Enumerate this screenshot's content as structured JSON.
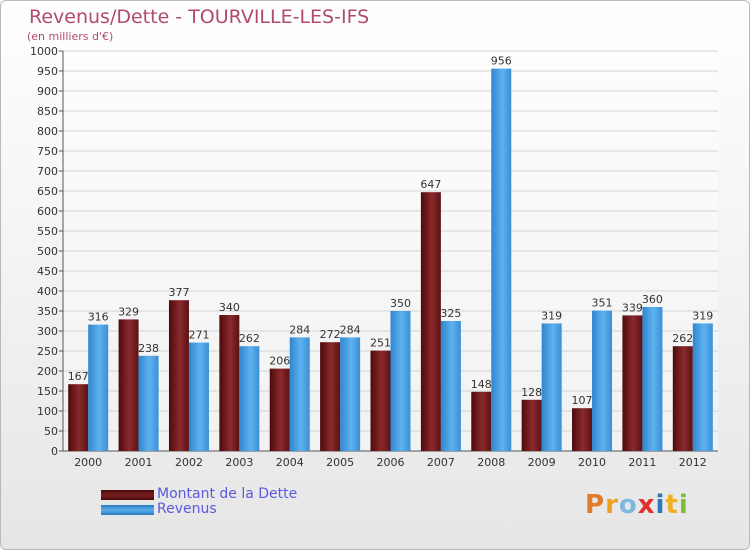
{
  "title": "Revenus/Dette - TOURVILLE-LES-IFS",
  "subtitle": "(en milliers d'€)",
  "logo": {
    "text": "Proxiti",
    "letters": [
      {
        "ch": "P",
        "color": "#e07b2a"
      },
      {
        "ch": "r",
        "color": "#f0a020"
      },
      {
        "ch": "o",
        "color": "#7cb8e0"
      },
      {
        "ch": "x",
        "color": "#e0302a"
      },
      {
        "ch": "i",
        "color": "#2a7ac0"
      },
      {
        "ch": "t",
        "color": "#f0b020"
      },
      {
        "ch": "i",
        "color": "#7abf3a"
      }
    ]
  },
  "legend": [
    {
      "label": "Montant de la Dette",
      "color": "#6e1818"
    },
    {
      "label": "Revenus",
      "color": "#3a92d8"
    }
  ],
  "chart_data": {
    "type": "bar",
    "title": "Revenus/Dette - TOURVILLE-LES-IFS",
    "subtitle": "(en milliers d'€)",
    "categories": [
      "2000",
      "2001",
      "2002",
      "2003",
      "2004",
      "2005",
      "2006",
      "2007",
      "2008",
      "2009",
      "2010",
      "2011",
      "2012"
    ],
    "series": [
      {
        "name": "Montant de la Dette",
        "color": "#7a1f22",
        "values": [
          167,
          329,
          377,
          340,
          206,
          272,
          251,
          647,
          148,
          128,
          107,
          339,
          262
        ]
      },
      {
        "name": "Revenus",
        "color": "#4aa3e6",
        "values": [
          316,
          238,
          271,
          262,
          284,
          284,
          350,
          325,
          956,
          319,
          351,
          360,
          319
        ]
      }
    ],
    "ylim": [
      0,
      1000
    ],
    "yticks": [
      0,
      50,
      100,
      150,
      200,
      250,
      300,
      350,
      400,
      450,
      500,
      550,
      600,
      650,
      700,
      750,
      800,
      850,
      900,
      950,
      1000
    ],
    "grid": true,
    "legend_position": "bottom-left"
  }
}
